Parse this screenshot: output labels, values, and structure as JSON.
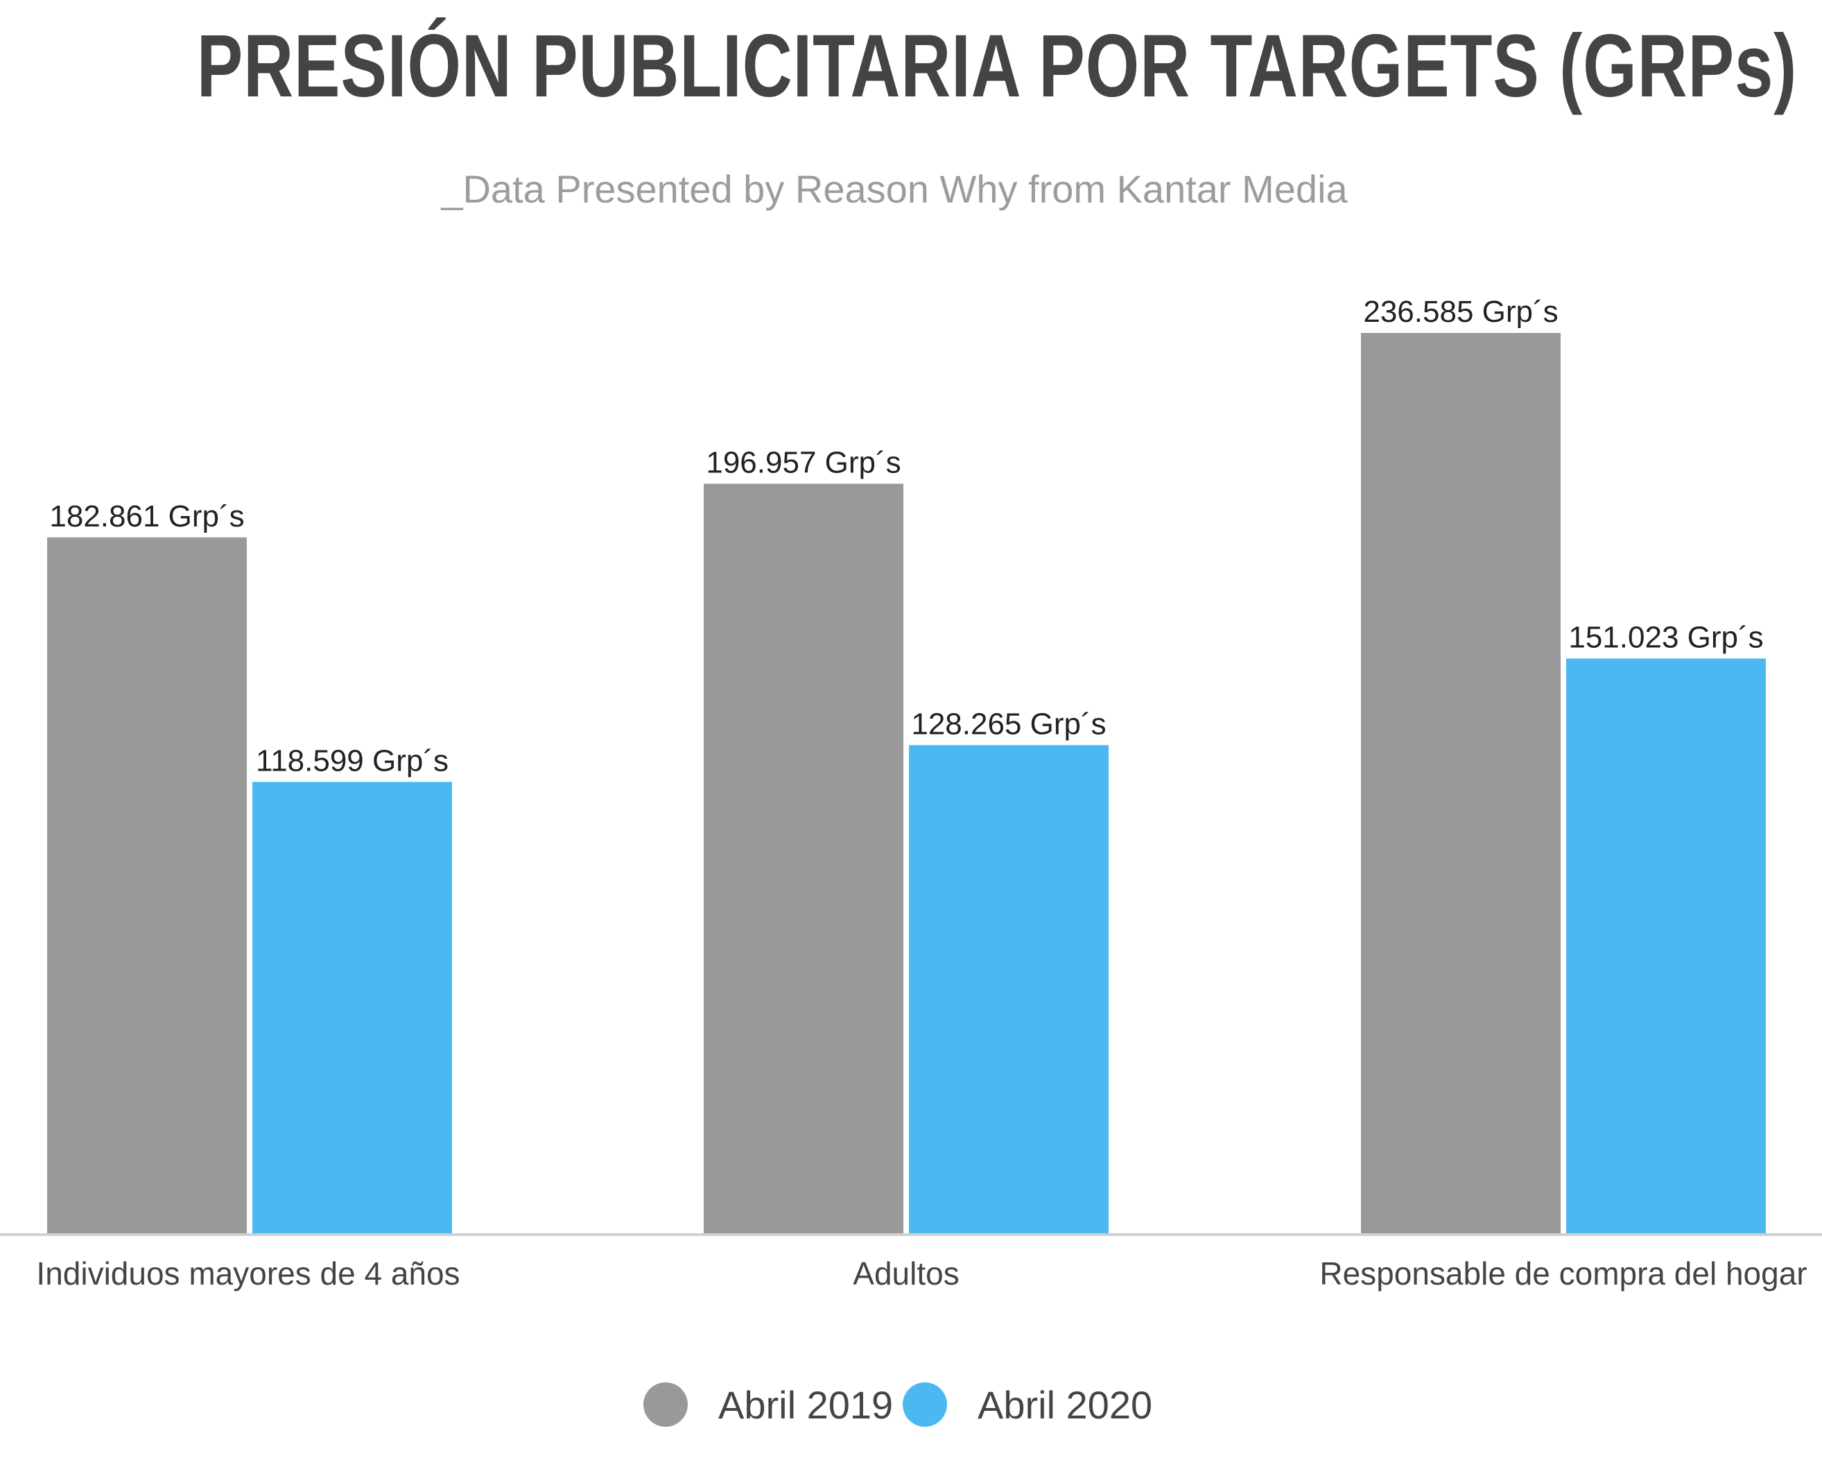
{
  "title": "PRESIÓN PUBLICITARIA POR TARGETS (GRPs)",
  "subtitle": "_Data Presented by Reason Why from Kantar Media",
  "colors": {
    "abril_2019": "#999999",
    "abril_2020": "#4cb8f2",
    "axis": "#d0d0d0",
    "text": "#222222"
  },
  "chart_data": {
    "type": "bar",
    "categories": [
      "Individuos mayores de 4 años",
      "Adultos",
      "Responsable de compra del hogar"
    ],
    "series": [
      {
        "name": "Abril 2019",
        "values": [
          182.861,
          196.957,
          236.585
        ],
        "labels": [
          "182.861 Grp´s",
          "196.957 Grp´s",
          "236.585 Grp´s"
        ]
      },
      {
        "name": "Abril 2020",
        "values": [
          118.599,
          128.265,
          151.023
        ],
        "labels": [
          "118.599 Grp´s",
          "128.265 Grp´s",
          "151.023 Grp´s"
        ]
      }
    ],
    "title": "PRESIÓN PUBLICITARIA POR TARGETS (GRPs)",
    "subtitle": "_Data Presented by Reason Why from Kantar Media",
    "ylim": [
      0,
      236.585
    ],
    "grid": false,
    "legend_position": "bottom"
  },
  "legend": [
    {
      "label": "Abril 2019",
      "color": "#999999"
    },
    {
      "label": "Abril 2020",
      "color": "#4cb8f2"
    }
  ]
}
